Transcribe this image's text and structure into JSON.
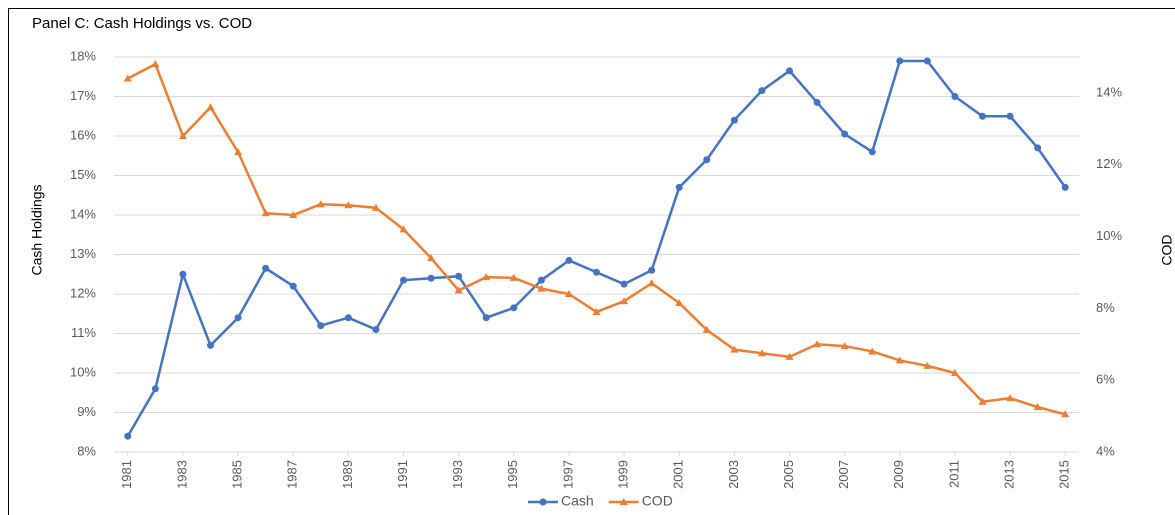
{
  "chart_data": {
    "type": "line",
    "title": "Panel C:  Cash Holdings vs. COD",
    "y_label": "Cash Holdings",
    "y2_label": "COD",
    "x": [
      1981,
      1982,
      1983,
      1984,
      1985,
      1986,
      1987,
      1988,
      1989,
      1990,
      1991,
      1992,
      1993,
      1994,
      1995,
      1996,
      1997,
      1998,
      1999,
      2000,
      2001,
      2002,
      2003,
      2004,
      2005,
      2006,
      2007,
      2008,
      2009,
      2010,
      2011,
      2012,
      2013,
      2014,
      2015
    ],
    "xlim": [
      1980.5,
      2015.5
    ],
    "xticks": [
      1981,
      1983,
      1985,
      1987,
      1989,
      1991,
      1993,
      1995,
      1997,
      1999,
      2001,
      2003,
      2005,
      2007,
      2009,
      2011,
      2013,
      2015
    ],
    "ylim": [
      8,
      18
    ],
    "yticks": [
      {
        "value": 8,
        "label": "8%"
      },
      {
        "value": 9,
        "label": "9%"
      },
      {
        "value": 10,
        "label": "10%"
      },
      {
        "value": 11,
        "label": "11%"
      },
      {
        "value": 12,
        "label": "12%"
      },
      {
        "value": 13,
        "label": "13%"
      },
      {
        "value": 14,
        "label": "14%"
      },
      {
        "value": 15,
        "label": "15%"
      },
      {
        "value": 16,
        "label": "16%"
      },
      {
        "value": 17,
        "label": "17%"
      },
      {
        "value": 18,
        "label": "18%"
      }
    ],
    "y2lim": [
      4,
      15
    ],
    "y2ticks": [
      {
        "value": 4,
        "label": "4%"
      },
      {
        "value": 6,
        "label": "6%"
      },
      {
        "value": 8,
        "label": "8%"
      },
      {
        "value": 10,
        "label": "10%"
      },
      {
        "value": 12,
        "label": "12%"
      },
      {
        "value": 14,
        "label": "14%"
      }
    ],
    "grid": true,
    "legend": "bottom",
    "series": [
      {
        "name": "Cash",
        "color": "#4472c4",
        "marker": "circle",
        "values": [
          8.4,
          9.6,
          12.5,
          10.7,
          11.4,
          12.65,
          12.2,
          11.2,
          11.4,
          11.1,
          12.35,
          12.4,
          12.45,
          11.4,
          11.65,
          12.35,
          12.85,
          12.55,
          12.25,
          12.6,
          14.7,
          15.4,
          16.4,
          17.15,
          17.65,
          16.85,
          16.05,
          15.6,
          17.9,
          17.9,
          17.0,
          16.5,
          16.5,
          15.7,
          14.7
        ]
      },
      {
        "name": "COD",
        "color": "#ed7d31",
        "marker": "triangle",
        "axis": "y2",
        "values": [
          14.4,
          14.8,
          12.8,
          13.6,
          12.35,
          10.65,
          10.6,
          10.9,
          10.87,
          10.8,
          10.2,
          9.4,
          8.5,
          8.87,
          8.85,
          8.55,
          8.4,
          7.9,
          8.2,
          8.7,
          8.15,
          7.4,
          6.85,
          6.75,
          6.65,
          7.0,
          6.95,
          6.8,
          6.55,
          6.4,
          6.2,
          5.4,
          5.5,
          5.25,
          5.05
        ]
      }
    ]
  }
}
